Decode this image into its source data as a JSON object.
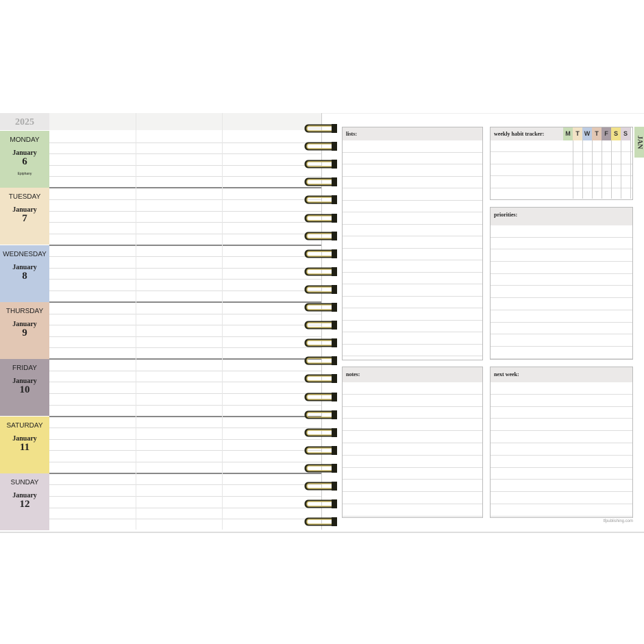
{
  "year": "2025",
  "days": [
    {
      "name": "MONDAY",
      "month": "January",
      "date": "6",
      "note": "Epiphany",
      "color": "#c8dcb6"
    },
    {
      "name": "TUESDAY",
      "month": "January",
      "date": "7",
      "color": "#f2e3c6"
    },
    {
      "name": "WEDNESDAY",
      "month": "January",
      "date": "8",
      "color": "#bccbe2"
    },
    {
      "name": "THURSDAY",
      "month": "January",
      "date": "9",
      "color": "#e2c7b4"
    },
    {
      "name": "FRIDAY",
      "month": "January",
      "date": "10",
      "color": "#a99da5"
    },
    {
      "name": "SATURDAY",
      "month": "January",
      "date": "11",
      "color": "#f1e18a"
    },
    {
      "name": "SUNDAY",
      "month": "January",
      "date": "12",
      "color": "#ddd3da"
    }
  ],
  "sections": {
    "lists": "lists:",
    "habit": "weekly habit tracker:",
    "priorities": "priorities:",
    "notes": "notes:",
    "next_week": "next week:"
  },
  "habit_days": [
    {
      "label": "M",
      "color": "#c8dcb6"
    },
    {
      "label": "T",
      "color": "#f2e3c6"
    },
    {
      "label": "W",
      "color": "#bccbe2"
    },
    {
      "label": "T",
      "color": "#e2c7b4"
    },
    {
      "label": "F",
      "color": "#a99da5"
    },
    {
      "label": "S",
      "color": "#f1e18a"
    },
    {
      "label": "S",
      "color": "#ddd3da"
    }
  ],
  "month_tab": {
    "label": "JAN",
    "color": "#c8dcb6"
  },
  "footer": "tfpublishing.com"
}
